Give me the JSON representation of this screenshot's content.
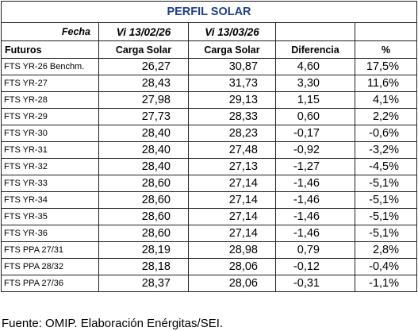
{
  "title": "PERFIL SOLAR",
  "fecha_label": "Fecha",
  "date_1": "Vi 13/02/26",
  "date_2": "Vi 13/03/26",
  "headers": {
    "futuros": "Futuros",
    "carga_1": "Carga Solar",
    "carga_2": "Carga Solar",
    "diferencia": "Diferencia",
    "pct": "%"
  },
  "rows": [
    {
      "name": "FTS YR-26 Benchm.",
      "v1": "26,27",
      "v2": "30,87",
      "diff": "4,60",
      "pct": "17,5%"
    },
    {
      "name": "FTS YR-27",
      "v1": "28,43",
      "v2": "31,73",
      "diff": "3,30",
      "pct": "11,6%"
    },
    {
      "name": "FTS YR-28",
      "v1": "27,98",
      "v2": "29,13",
      "diff": "1,15",
      "pct": "4,1%"
    },
    {
      "name": "FTS YR-29",
      "v1": "27,73",
      "v2": "28,33",
      "diff": "0,60",
      "pct": "2,2%"
    },
    {
      "name": "FTS YR-30",
      "v1": "28,40",
      "v2": "28,23",
      "diff": "-0,17",
      "pct": "-0,6%"
    },
    {
      "name": "FTS YR-31",
      "v1": "28,40",
      "v2": "27,48",
      "diff": "-0,92",
      "pct": "-3,2%"
    },
    {
      "name": "FTS YR-32",
      "v1": "28,40",
      "v2": "27,13",
      "diff": "-1,27",
      "pct": "-4,5%"
    },
    {
      "name": "FTS YR-33",
      "v1": "28,60",
      "v2": "27,14",
      "diff": "-1,46",
      "pct": "-5,1%"
    },
    {
      "name": "FTS YR-34",
      "v1": "28,60",
      "v2": "27,14",
      "diff": "-1,46",
      "pct": "-5,1%"
    },
    {
      "name": "FTS YR-35",
      "v1": "28,60",
      "v2": "27,14",
      "diff": "-1,46",
      "pct": "-5,1%"
    },
    {
      "name": "FTS YR-36",
      "v1": "28,60",
      "v2": "27,14",
      "diff": "-1,46",
      "pct": "-5,1%"
    },
    {
      "name": "FTS PPA 27/31",
      "v1": "28,19",
      "v2": "28,98",
      "diff": "0,79",
      "pct": "2,8%"
    },
    {
      "name": "FTS PPA 28/32",
      "v1": "28,18",
      "v2": "28,06",
      "diff": "-0,12",
      "pct": "-0,4%"
    },
    {
      "name": "FTS PPA 27/36",
      "v1": "28,37",
      "v2": "28,06",
      "diff": "-0,31",
      "pct": "-1,1%"
    }
  ],
  "footer": "Fuente: OMIP. Elaboración Enérgitas/SEI.",
  "colors": {
    "title": "#1f3f86",
    "border": "#1f1f1f"
  }
}
